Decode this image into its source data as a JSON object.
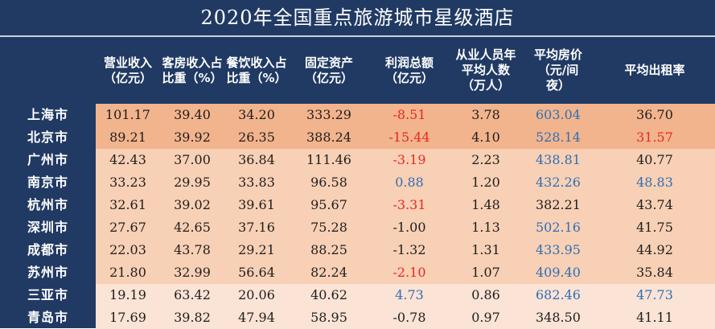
{
  "title": "2020年全国重点旅游城市星级酒店",
  "columns": [
    "营业收入\n（亿元）",
    "客房收入占\n比重（%）",
    "餐饮收入占\n比重（%）",
    "固定资产\n（亿元）",
    "利润总额\n（亿元）",
    "从业人员年\n平均人数\n（万人）",
    "平均房价\n（元/间\n夜）",
    "平均出租率"
  ],
  "colors": {
    "header_bg": "#213a63",
    "row_dark": "#f2b48d",
    "row_mid": "#f8d0b5",
    "row_light": "#fbe3d5",
    "negative": "#e42a1f",
    "positive": "#2f6fb5",
    "text": "#1e1e1e"
  },
  "rows": [
    {
      "city": "上海市",
      "tier": "dark",
      "values": [
        "101.17",
        "39.40",
        "34.20",
        "333.29",
        "-8.51",
        "3.78",
        "603.04",
        "36.70"
      ],
      "tones": [
        "",
        "",
        "",
        "",
        "neg",
        "",
        "pos",
        ""
      ]
    },
    {
      "city": "北京市",
      "tier": "dark",
      "values": [
        "89.21",
        "39.92",
        "26.35",
        "388.24",
        "-15.44",
        "4.10",
        "528.14",
        "31.57"
      ],
      "tones": [
        "",
        "",
        "",
        "",
        "neg",
        "",
        "pos",
        "neg"
      ]
    },
    {
      "city": "广州市",
      "tier": "mid",
      "values": [
        "42.43",
        "37.00",
        "36.84",
        "111.46",
        "-3.19",
        "2.23",
        "438.81",
        "40.77"
      ],
      "tones": [
        "",
        "",
        "",
        "",
        "neg",
        "",
        "pos",
        ""
      ]
    },
    {
      "city": "南京市",
      "tier": "mid",
      "values": [
        "33.23",
        "29.95",
        "33.83",
        "96.58",
        "0.88",
        "1.20",
        "432.26",
        "48.83"
      ],
      "tones": [
        "",
        "",
        "",
        "",
        "pos",
        "",
        "pos",
        "pos"
      ]
    },
    {
      "city": "杭州市",
      "tier": "mid",
      "values": [
        "32.61",
        "39.02",
        "39.61",
        "95.67",
        "-3.31",
        "1.48",
        "382.21",
        "43.74"
      ],
      "tones": [
        "",
        "",
        "",
        "",
        "neg",
        "",
        "",
        ""
      ]
    },
    {
      "city": "深圳市",
      "tier": "mid",
      "values": [
        "27.67",
        "42.65",
        "37.16",
        "75.28",
        "-1.00",
        "1.13",
        "502.16",
        "41.75"
      ],
      "tones": [
        "",
        "",
        "",
        "",
        "",
        "",
        "pos",
        ""
      ]
    },
    {
      "city": "成都市",
      "tier": "mid",
      "values": [
        "22.03",
        "43.78",
        "29.21",
        "88.25",
        "-1.32",
        "1.31",
        "433.95",
        "44.92"
      ],
      "tones": [
        "",
        "",
        "",
        "",
        "",
        "",
        "pos",
        ""
      ]
    },
    {
      "city": "苏州市",
      "tier": "mid",
      "values": [
        "21.80",
        "32.99",
        "56.64",
        "82.24",
        "-2.10",
        "1.07",
        "409.40",
        "35.84"
      ],
      "tones": [
        "",
        "",
        "",
        "",
        "neg",
        "",
        "pos",
        ""
      ]
    },
    {
      "city": "三亚市",
      "tier": "light",
      "values": [
        "19.19",
        "63.42",
        "20.06",
        "40.62",
        "4.73",
        "0.86",
        "682.46",
        "47.73"
      ],
      "tones": [
        "",
        "",
        "",
        "",
        "pos",
        "",
        "pos",
        "pos"
      ]
    },
    {
      "city": "青岛市",
      "tier": "light",
      "values": [
        "17.69",
        "39.82",
        "47.94",
        "58.95",
        "-0.78",
        "0.97",
        "348.50",
        "41.11"
      ],
      "tones": [
        "",
        "",
        "",
        "",
        "",
        "",
        "",
        ""
      ]
    }
  ]
}
